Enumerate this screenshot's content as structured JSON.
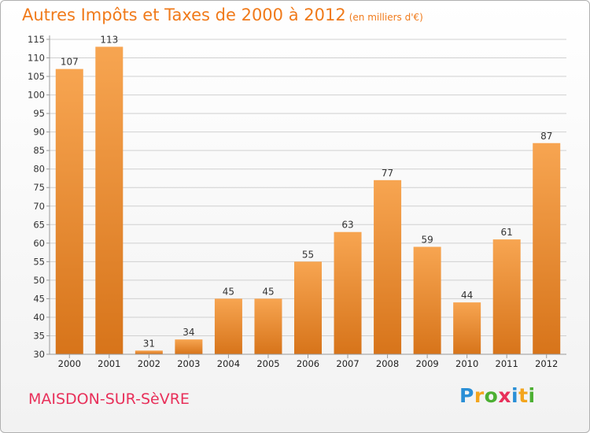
{
  "title": "Autres Impôts et Taxes de 2000 à 2012",
  "subtitle": "(en milliers d'€)",
  "commune": "MAISDON-SUR-SèVRE",
  "logo": {
    "letters": [
      "P",
      "r",
      "o",
      "x",
      "i",
      "t",
      "i"
    ],
    "colors": [
      "#2a8fd6",
      "#f3a51d",
      "#4caf32",
      "#e8305a",
      "#2a8fd6",
      "#f3a51d",
      "#4caf32"
    ]
  },
  "colors": {
    "bar_light": "#f7a551",
    "bar_dark": "#d7741a",
    "grid": "#d0d0d0",
    "axis": "#999999"
  },
  "chart_data": {
    "type": "bar",
    "categories": [
      "2000",
      "2001",
      "2002",
      "2003",
      "2004",
      "2005",
      "2006",
      "2007",
      "2008",
      "2009",
      "2010",
      "2011",
      "2012"
    ],
    "values": [
      107,
      113,
      31,
      34,
      45,
      45,
      55,
      63,
      77,
      59,
      44,
      61,
      87
    ],
    "value_labels": [
      "107",
      "113",
      "31",
      "34",
      "45",
      "45",
      "55",
      "63",
      "77",
      "59",
      "44",
      "61",
      "87"
    ],
    "ylim": [
      30,
      115
    ],
    "yticks": [
      30,
      35,
      40,
      45,
      50,
      55,
      60,
      65,
      70,
      75,
      80,
      85,
      90,
      95,
      100,
      105,
      110,
      115
    ],
    "ytick_labels": [
      "30",
      "35",
      "40",
      "45",
      "50",
      "55",
      "60",
      "65",
      "70",
      "75",
      "80",
      "85",
      "90",
      "95",
      "100",
      "105",
      "110",
      "115"
    ],
    "grid": true,
    "legend": "none"
  }
}
